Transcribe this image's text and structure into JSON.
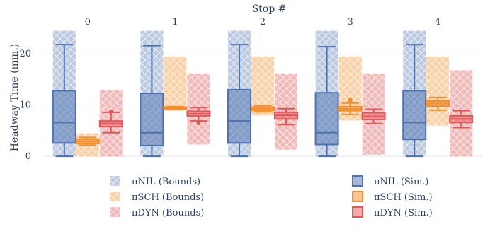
{
  "chart_data": {
    "type": "box",
    "title": "Stop #",
    "ylabel": "Headway Time (min.)",
    "xlabel": "",
    "categories": [
      "0",
      "1",
      "2",
      "3",
      "4"
    ],
    "ylim": [
      -1.5,
      25
    ],
    "yticks": [
      0,
      10,
      20
    ],
    "grid": true,
    "legend_position": "bottom",
    "colors": {
      "NIL": "#4c72b0",
      "SCH": "#f28e2b",
      "DYN": "#e15759"
    },
    "bounds": [
      {
        "name": "πNIL (Bounds)",
        "key": "NIL",
        "ranges": [
          [
            0,
            24.5
          ],
          [
            0,
            24.5
          ],
          [
            0,
            24.5
          ],
          [
            0,
            24.5
          ],
          [
            0,
            24.5
          ]
        ]
      },
      {
        "name": "πSCH (Bounds)",
        "key": "SCH",
        "ranges": [
          [
            0,
            4.5
          ],
          [
            9.0,
            19.5
          ],
          [
            8.0,
            19.5
          ],
          [
            7.0,
            19.5
          ],
          [
            6.0,
            19.5
          ]
        ]
      },
      {
        "name": "πDYN (Bounds)",
        "key": "DYN",
        "ranges": [
          [
            0,
            13.0
          ],
          [
            2.3,
            16.2
          ],
          [
            1.3,
            16.2
          ],
          [
            0.3,
            16.2
          ],
          [
            0,
            16.8
          ]
        ]
      }
    ],
    "sim": [
      {
        "name": "πNIL (Sim.)",
        "key": "NIL",
        "boxes": [
          {
            "min": 0,
            "q1": 2.6,
            "median": 6.6,
            "q3": 12.8,
            "max": 21.8,
            "outliers": []
          },
          {
            "min": 0,
            "q1": 2.1,
            "median": 4.6,
            "q3": 12.3,
            "max": 21.6,
            "outliers": []
          },
          {
            "min": 0,
            "q1": 2.6,
            "median": 6.9,
            "q3": 13.0,
            "max": 21.8,
            "outliers": []
          },
          {
            "min": 0,
            "q1": 2.3,
            "median": 4.6,
            "q3": 12.4,
            "max": 21.4,
            "outliers": []
          },
          {
            "min": 0,
            "q1": 3.3,
            "median": 6.6,
            "q3": 12.8,
            "max": 21.8,
            "outliers": []
          }
        ]
      },
      {
        "name": "πSCH (Sim.)",
        "key": "SCH",
        "boxes": [
          {
            "min": 2.2,
            "q1": 2.5,
            "median": 2.9,
            "q3": 3.3,
            "max": 3.7,
            "outliers": []
          },
          {
            "min": 9.1,
            "q1": 9.2,
            "median": 9.4,
            "q3": 9.6,
            "max": 9.7,
            "outliers": []
          },
          {
            "min": 8.7,
            "q1": 9.0,
            "median": 9.3,
            "q3": 9.6,
            "max": 9.9,
            "outliers": []
          },
          {
            "min": 8.2,
            "q1": 8.9,
            "median": 9.3,
            "q3": 9.7,
            "max": 10.4,
            "outliers": [
              10.9,
              11.1
            ]
          },
          {
            "min": 9.0,
            "q1": 9.8,
            "median": 10.3,
            "q3": 10.8,
            "max": 11.5,
            "outliers": []
          }
        ]
      },
      {
        "name": "πDYN (Sim.)",
        "key": "DYN",
        "boxes": [
          {
            "min": 4.6,
            "q1": 5.8,
            "median": 6.4,
            "q3": 6.9,
            "max": 8.6,
            "outliers": [
              8.7
            ]
          },
          {
            "min": 6.9,
            "q1": 7.9,
            "median": 8.3,
            "q3": 8.8,
            "max": 9.5,
            "outliers": [
              6.5
            ]
          },
          {
            "min": 6.2,
            "q1": 7.3,
            "median": 8.0,
            "q3": 8.6,
            "max": 9.3,
            "outliers": []
          },
          {
            "min": 6.4,
            "q1": 7.2,
            "median": 7.8,
            "q3": 8.5,
            "max": 9.2,
            "outliers": []
          },
          {
            "min": 5.6,
            "q1": 6.6,
            "median": 7.3,
            "q3": 7.9,
            "max": 8.9,
            "outliers": []
          }
        ]
      }
    ]
  }
}
